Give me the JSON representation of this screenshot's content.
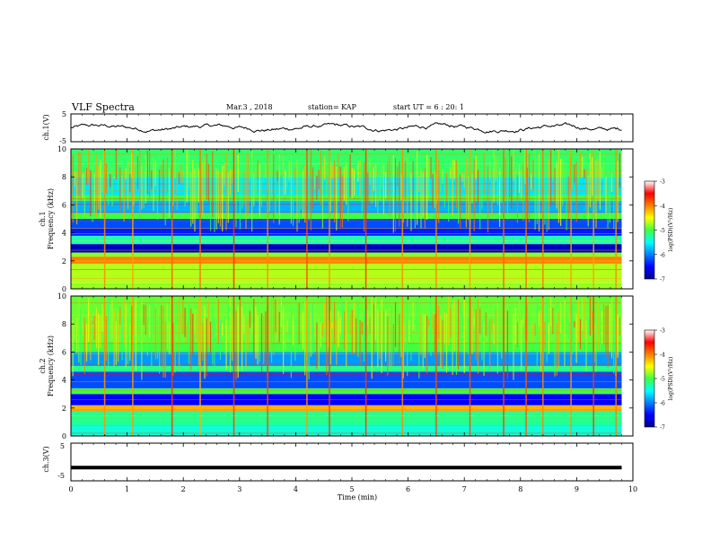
{
  "header": {
    "title": "VLF Spectra",
    "date": "Mar.3 , 2018",
    "station": "station= KAP",
    "start_ut": "start UT = 6 : 20: 1"
  },
  "chart_data": [
    {
      "type": "line",
      "ylabel": "ch.1(V)",
      "ylim": [
        -5,
        5
      ],
      "yticks": [
        "5",
        "-5"
      ],
      "xlim": [
        0,
        10
      ],
      "series_color": "#000000",
      "description_values": "noisy waveform fluctuating roughly between -2 and 2 V over 0–9.8 min"
    },
    {
      "type": "heatmap",
      "ylabel_line1": "ch.1",
      "ylabel_line2": "Frequency (kHz)",
      "ylim": [
        0,
        10
      ],
      "yticks": [
        "0",
        "2",
        "4",
        "6",
        "8",
        "10"
      ],
      "xlim": [
        0,
        10
      ],
      "colorbar": {
        "label": "log(PSD)(V²/Hz)",
        "ticks": [
          "-3",
          "-4",
          "-5",
          "-6",
          "-7"
        ],
        "range": [
          -7,
          -3
        ]
      },
      "bands_khz": [
        {
          "from": 0.0,
          "to": 0.4,
          "level": -4.8
        },
        {
          "from": 0.4,
          "to": 1.8,
          "level": -4.7
        },
        {
          "from": 1.8,
          "to": 2.3,
          "level": -4.0
        },
        {
          "from": 2.3,
          "to": 2.6,
          "level": -4.8
        },
        {
          "from": 2.6,
          "to": 3.2,
          "level": -6.8
        },
        {
          "from": 3.2,
          "to": 3.8,
          "level": -5.3
        },
        {
          "from": 3.8,
          "to": 4.4,
          "level": -6.4
        },
        {
          "from": 4.4,
          "to": 5.0,
          "level": -6.2
        },
        {
          "from": 5.0,
          "to": 5.4,
          "level": -5.0
        },
        {
          "from": 5.4,
          "to": 6.3,
          "level": -5.8
        },
        {
          "from": 6.3,
          "to": 6.7,
          "level": -5.0
        },
        {
          "from": 6.7,
          "to": 8.0,
          "level": -5.6
        },
        {
          "from": 8.0,
          "to": 10.0,
          "level": -5.1
        }
      ]
    },
    {
      "type": "heatmap",
      "ylabel_line1": "ch.2",
      "ylabel_line2": "Frequency (kHz)",
      "ylim": [
        0,
        10
      ],
      "yticks": [
        "0",
        "2",
        "4",
        "6",
        "8",
        "10"
      ],
      "xlim": [
        0,
        10
      ],
      "colorbar": {
        "label": "log(PSD)(V²/Hz)",
        "ticks": [
          "-3",
          "-4",
          "-5",
          "-6",
          "-7"
        ],
        "range": [
          -7,
          -3
        ]
      },
      "bands_khz": [
        {
          "from": 0.0,
          "to": 0.8,
          "level": -5.4
        },
        {
          "from": 0.8,
          "to": 1.8,
          "level": -5.2
        },
        {
          "from": 1.8,
          "to": 2.2,
          "level": -4.2
        },
        {
          "from": 2.2,
          "to": 3.0,
          "level": -6.5
        },
        {
          "from": 3.0,
          "to": 3.4,
          "level": -5.0
        },
        {
          "from": 3.4,
          "to": 4.6,
          "level": -6.2
        },
        {
          "from": 4.6,
          "to": 5.0,
          "level": -5.2
        },
        {
          "from": 5.0,
          "to": 6.0,
          "level": -5.9
        },
        {
          "from": 6.0,
          "to": 6.6,
          "level": -5.0
        },
        {
          "from": 6.6,
          "to": 10.0,
          "level": -4.9
        }
      ]
    },
    {
      "type": "line",
      "ylabel": "ch.3(V)",
      "ylim": [
        -5,
        5
      ],
      "yticks": [
        "5",
        "-5"
      ],
      "xlim": [
        0,
        10
      ],
      "series_color": "#000000",
      "constant_value": -1.5
    }
  ],
  "xaxis": {
    "label": "Time (min)",
    "ticks": [
      "0",
      "1",
      "2",
      "3",
      "4",
      "5",
      "6",
      "7",
      "8",
      "9",
      "10"
    ],
    "data_end": 9.8
  },
  "spikes_min": [
    0.6,
    1.1,
    1.8,
    2.3,
    2.9,
    3.5,
    4.2,
    4.6,
    5.25,
    5.9,
    6.5,
    7.1,
    7.7,
    8.1,
    8.4,
    8.9,
    9.3,
    9.7
  ]
}
